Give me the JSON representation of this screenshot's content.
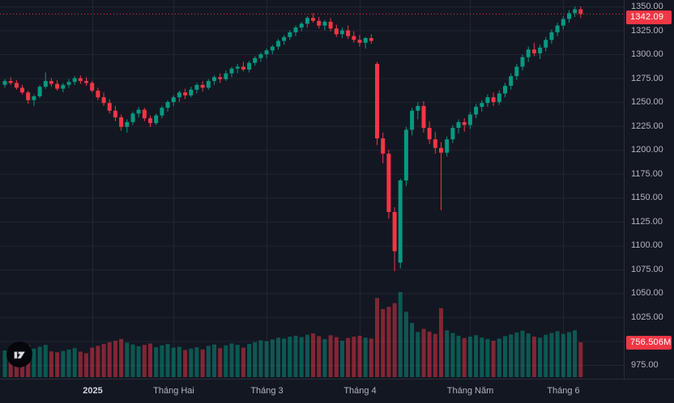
{
  "theme": {
    "background_color": "#131722",
    "grid_color": "#212631",
    "axis_border_color": "#2a2e39",
    "axis_text_color": "#b2b5be",
    "up_color": "#089981",
    "down_color": "#f23645",
    "up_volume_color": "rgba(8,153,129,0.5)",
    "down_volume_color": "rgba(242,54,69,0.5)",
    "badge_text_color": "#ffffff"
  },
  "logo": {
    "name": "TradingView"
  },
  "chart_data": {
    "type": "candlestick",
    "title": "",
    "last_price": 1342.09,
    "last_price_label": "1342.09",
    "last_volume_label": "756.506M",
    "price_axis": {
      "max_price": 1350,
      "min_price": 975,
      "step": 25,
      "ticks": [
        {
          "value": 1350,
          "label": "1350.00"
        },
        {
          "value": 1325,
          "label": "1325.00"
        },
        {
          "value": 1300,
          "label": "1300.00"
        },
        {
          "value": 1275,
          "label": "1275.00"
        },
        {
          "value": 1250,
          "label": "1250.00"
        },
        {
          "value": 1225,
          "label": "1225.00"
        },
        {
          "value": 1200,
          "label": "1200.00"
        },
        {
          "value": 1175,
          "label": "1175.00"
        },
        {
          "value": 1150,
          "label": "1150.00"
        },
        {
          "value": 1125,
          "label": "1125.00"
        },
        {
          "value": 1100,
          "label": "1100.00"
        },
        {
          "value": 1075,
          "label": "1075.00"
        },
        {
          "value": 1050,
          "label": "1050.00"
        },
        {
          "value": 1025,
          "label": "1025.00"
        },
        {
          "value": 1000,
          "label": "1000.00"
        },
        {
          "value": 975,
          "label": "975.00"
        }
      ]
    },
    "time_axis": {
      "labels": [
        {
          "text": "2025",
          "index": 15,
          "emphasis": true
        },
        {
          "text": "Tháng Hai",
          "index": 29,
          "emphasis": false
        },
        {
          "text": "Tháng 3",
          "index": 45,
          "emphasis": false
        },
        {
          "text": "Tháng 4",
          "index": 61,
          "emphasis": false
        },
        {
          "text": "Tháng Năm",
          "index": 80,
          "emphasis": false
        },
        {
          "text": "Tháng 6",
          "index": 96,
          "emphasis": false
        }
      ]
    },
    "candles_format": [
      "open",
      "high",
      "low",
      "close",
      "volume_millions"
    ],
    "candles": [
      [
        1268,
        1274,
        1265,
        1272,
        580
      ],
      [
        1272,
        1276,
        1268,
        1270,
        545
      ],
      [
        1270,
        1273,
        1263,
        1265,
        610
      ],
      [
        1265,
        1268,
        1258,
        1260,
        640
      ],
      [
        1260,
        1262,
        1248,
        1252,
        690
      ],
      [
        1252,
        1258,
        1246,
        1256,
        620
      ],
      [
        1256,
        1268,
        1254,
        1266,
        660
      ],
      [
        1266,
        1281,
        1264,
        1272,
        700
      ],
      [
        1272,
        1275,
        1266,
        1269,
        560
      ],
      [
        1269,
        1273,
        1262,
        1264,
        540
      ],
      [
        1264,
        1270,
        1260,
        1268,
        570
      ],
      [
        1268,
        1274,
        1265,
        1271,
        600
      ],
      [
        1271,
        1277,
        1268,
        1275,
        630
      ],
      [
        1275,
        1278,
        1269,
        1272,
        555
      ],
      [
        1272,
        1276,
        1267,
        1270,
        520
      ],
      [
        1270,
        1272,
        1260,
        1262,
        640
      ],
      [
        1262,
        1265,
        1252,
        1255,
        680
      ],
      [
        1255,
        1260,
        1246,
        1249,
        720
      ],
      [
        1249,
        1253,
        1238,
        1241,
        760
      ],
      [
        1241,
        1246,
        1230,
        1234,
        790
      ],
      [
        1234,
        1237,
        1220,
        1224,
        830
      ],
      [
        1224,
        1232,
        1218,
        1229,
        750
      ],
      [
        1229,
        1240,
        1226,
        1238,
        710
      ],
      [
        1238,
        1245,
        1234,
        1242,
        670
      ],
      [
        1242,
        1244,
        1230,
        1233,
        700
      ],
      [
        1233,
        1236,
        1224,
        1228,
        730
      ],
      [
        1228,
        1238,
        1226,
        1236,
        650
      ],
      [
        1236,
        1246,
        1233,
        1244,
        690
      ],
      [
        1244,
        1252,
        1240,
        1250,
        720
      ],
      [
        1250,
        1257,
        1246,
        1255,
        640
      ],
      [
        1255,
        1262,
        1250,
        1260,
        660
      ],
      [
        1260,
        1264,
        1253,
        1257,
        590
      ],
      [
        1257,
        1266,
        1255,
        1263,
        620
      ],
      [
        1263,
        1270,
        1259,
        1268,
        650
      ],
      [
        1268,
        1272,
        1261,
        1265,
        600
      ],
      [
        1265,
        1274,
        1263,
        1272,
        680
      ],
      [
        1272,
        1278,
        1268,
        1276,
        710
      ],
      [
        1276,
        1280,
        1270,
        1274,
        630
      ],
      [
        1274,
        1283,
        1272,
        1280,
        690
      ],
      [
        1280,
        1287,
        1276,
        1285,
        730
      ],
      [
        1285,
        1290,
        1280,
        1287,
        700
      ],
      [
        1287,
        1292,
        1282,
        1284,
        640
      ],
      [
        1284,
        1293,
        1281,
        1291,
        720
      ],
      [
        1291,
        1298,
        1288,
        1296,
        760
      ],
      [
        1296,
        1302,
        1292,
        1300,
        800
      ],
      [
        1300,
        1306,
        1296,
        1304,
        780
      ],
      [
        1304,
        1310,
        1300,
        1308,
        820
      ],
      [
        1308,
        1316,
        1305,
        1314,
        860
      ],
      [
        1314,
        1320,
        1310,
        1318,
        840
      ],
      [
        1318,
        1325,
        1315,
        1323,
        880
      ],
      [
        1323,
        1330,
        1319,
        1328,
        900
      ],
      [
        1328,
        1334,
        1324,
        1332,
        870
      ],
      [
        1332,
        1340,
        1328,
        1338,
        920
      ],
      [
        1338,
        1343,
        1333,
        1335,
        950
      ],
      [
        1335,
        1339,
        1327,
        1330,
        890
      ],
      [
        1330,
        1336,
        1325,
        1334,
        830
      ],
      [
        1334,
        1338,
        1324,
        1327,
        910
      ],
      [
        1327,
        1331,
        1318,
        1321,
        870
      ],
      [
        1321,
        1328,
        1317,
        1325,
        790
      ],
      [
        1325,
        1330,
        1316,
        1319,
        850
      ],
      [
        1319,
        1324,
        1312,
        1315,
        880
      ],
      [
        1315,
        1320,
        1308,
        1312,
        900
      ],
      [
        1312,
        1318,
        1306,
        1317,
        860
      ],
      [
        1317,
        1321,
        1311,
        1314,
        840
      ],
      [
        1290,
        1292,
        1205,
        1212,
        1720
      ],
      [
        1212,
        1218,
        1186,
        1196,
        1480
      ],
      [
        1196,
        1200,
        1128,
        1135,
        1530
      ],
      [
        1135,
        1140,
        1073,
        1094,
        1610
      ],
      [
        1082,
        1170,
        1076,
        1168,
        1850
      ],
      [
        1168,
        1224,
        1162,
        1221,
        1420
      ],
      [
        1221,
        1244,
        1215,
        1241,
        1180
      ],
      [
        1241,
        1250,
        1232,
        1246,
        980
      ],
      [
        1246,
        1251,
        1218,
        1223,
        1050
      ],
      [
        1223,
        1230,
        1206,
        1211,
        990
      ],
      [
        1211,
        1219,
        1196,
        1202,
        940
      ],
      [
        1202,
        1208,
        1137,
        1197,
        1500
      ],
      [
        1197,
        1214,
        1193,
        1211,
        1020
      ],
      [
        1211,
        1226,
        1207,
        1223,
        960
      ],
      [
        1223,
        1232,
        1217,
        1229,
        900
      ],
      [
        1229,
        1233,
        1219,
        1226,
        850
      ],
      [
        1226,
        1240,
        1222,
        1237,
        880
      ],
      [
        1237,
        1248,
        1233,
        1245,
        910
      ],
      [
        1245,
        1252,
        1240,
        1249,
        860
      ],
      [
        1249,
        1258,
        1245,
        1255,
        830
      ],
      [
        1255,
        1260,
        1246,
        1250,
        790
      ],
      [
        1250,
        1262,
        1247,
        1259,
        840
      ],
      [
        1259,
        1270,
        1255,
        1267,
        890
      ],
      [
        1267,
        1280,
        1263,
        1277,
        930
      ],
      [
        1277,
        1290,
        1273,
        1287,
        970
      ],
      [
        1287,
        1300,
        1283,
        1297,
        1010
      ],
      [
        1297,
        1308,
        1292,
        1305,
        950
      ],
      [
        1305,
        1312,
        1298,
        1301,
        880
      ],
      [
        1301,
        1310,
        1295,
        1307,
        860
      ],
      [
        1307,
        1318,
        1303,
        1315,
        920
      ],
      [
        1315,
        1326,
        1311,
        1323,
        960
      ],
      [
        1323,
        1333,
        1319,
        1330,
        1000
      ],
      [
        1330,
        1340,
        1326,
        1337,
        940
      ],
      [
        1337,
        1346,
        1333,
        1343,
        980
      ],
      [
        1343,
        1350,
        1339,
        1347,
        1020
      ],
      [
        1347,
        1350,
        1338,
        1342.09,
        756.506
      ]
    ]
  }
}
